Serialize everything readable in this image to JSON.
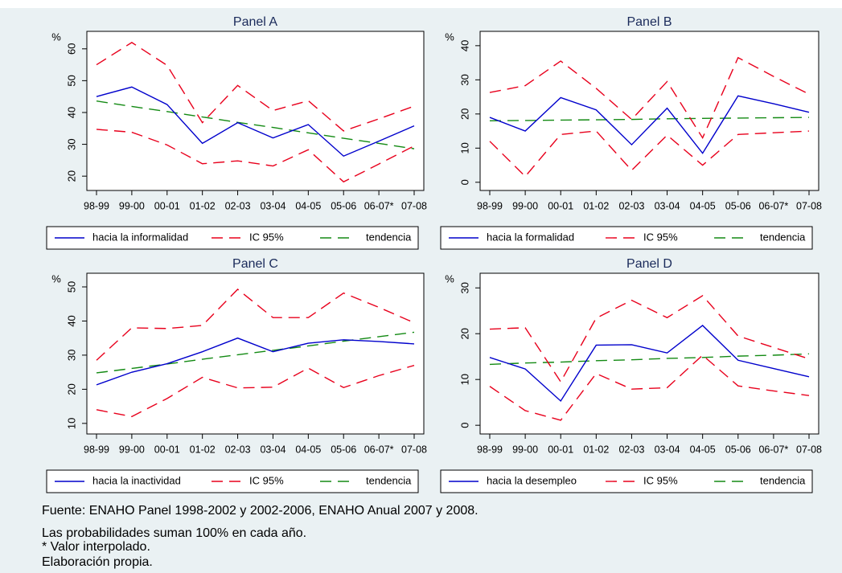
{
  "chart_data": [
    {
      "type": "line",
      "title": "Panel A",
      "ylabel": "%",
      "categories": [
        "98-99",
        "99-00",
        "00-01",
        "01-02",
        "02-03",
        "03-04",
        "04-05",
        "05-06",
        "06-07*",
        "07-08"
      ],
      "series": [
        {
          "name": "hacia la informalidad",
          "color": "#0000cc",
          "dash": "solid",
          "values": [
            45,
            48,
            42.5,
            30.3,
            36.8,
            32,
            36.2,
            26.3,
            31,
            35.8
          ]
        },
        {
          "name": "IC 95%",
          "color": "#e8001c",
          "dash": "dashed",
          "values": [
            55,
            62,
            54.8,
            36.8,
            48.5,
            40.6,
            43.7,
            34.2,
            38,
            42
          ],
          "lower": [
            34.7,
            33.8,
            29.8,
            23.9,
            24.8,
            23.2,
            28.3,
            18.2,
            23.8,
            29.5
          ]
        },
        {
          "name": "tendencia",
          "color": "#138a13",
          "dash": "dashed",
          "values": [
            43.6,
            41.9,
            40.3,
            38.6,
            36.9,
            35.3,
            33.6,
            31.9,
            30.3,
            28.6
          ]
        }
      ],
      "ylim": [
        15.5,
        65.5
      ],
      "yticks": [
        20,
        30,
        40,
        50,
        60
      ]
    },
    {
      "type": "line",
      "title": "Panel B",
      "ylabel": "%",
      "categories": [
        "98-99",
        "99-00",
        "00-01",
        "01-02",
        "02-03",
        "03-04",
        "04-05",
        "05-06",
        "06-07*",
        "07-08"
      ],
      "series": [
        {
          "name": "hacia la formalidad",
          "color": "#0000cc",
          "dash": "solid",
          "values": [
            19,
            15,
            24.8,
            21.2,
            11,
            21.7,
            8.5,
            25.3,
            23,
            20.5
          ]
        },
        {
          "name": "IC 95%",
          "color": "#e8001c",
          "dash": "dashed",
          "values": [
            26.3,
            28.3,
            35.5,
            27.5,
            18.4,
            29.5,
            13,
            36.5,
            31,
            25.8
          ],
          "lower": [
            12,
            1.7,
            14,
            15,
            3.5,
            13.8,
            5,
            14,
            14.5,
            15
          ]
        },
        {
          "name": "tendencia",
          "color": "#138a13",
          "dash": "dashed",
          "values": [
            18,
            18.1,
            18.2,
            18.3,
            18.4,
            18.6,
            18.7,
            18.8,
            18.9,
            19
          ]
        }
      ],
      "ylim": [
        -2.4,
        44.2
      ],
      "yticks": [
        0,
        10,
        20,
        30,
        40
      ]
    },
    {
      "type": "line",
      "title": "Panel C",
      "ylabel": "%",
      "categories": [
        "98-99",
        "99-00",
        "00-01",
        "01-02",
        "02-03",
        "03-04",
        "04-05",
        "05-06",
        "06-07*",
        "07-08"
      ],
      "series": [
        {
          "name": "hacia la inactividad",
          "color": "#0000cc",
          "dash": "solid",
          "values": [
            21.3,
            25,
            27.5,
            31,
            35,
            31,
            33.5,
            34.5,
            34,
            33.3
          ]
        },
        {
          "name": "IC 95%",
          "color": "#e8001c",
          "dash": "dashed",
          "values": [
            28.5,
            38,
            37.8,
            38.7,
            49.3,
            41,
            41,
            48.2,
            44,
            39.5
          ],
          "lower": [
            14,
            12,
            17.3,
            23.5,
            20.4,
            20.6,
            26.2,
            20.5,
            24,
            27
          ]
        },
        {
          "name": "tendencia",
          "color": "#138a13",
          "dash": "dashed",
          "values": [
            24.8,
            26.1,
            27.4,
            28.8,
            30.1,
            31.4,
            32.7,
            34.1,
            35.4,
            36.7
          ]
        }
      ],
      "ylim": [
        6.9,
        54
      ],
      "yticks": [
        10,
        20,
        30,
        40,
        50
      ]
    },
    {
      "type": "line",
      "title": "Panel D",
      "ylabel": "%",
      "categories": [
        "98-99",
        "99-00",
        "00-01",
        "01-02",
        "02-03",
        "03-04",
        "04-05",
        "05-06",
        "06-07*",
        "07-08"
      ],
      "series": [
        {
          "name": "hacia la desempleo",
          "color": "#0000cc",
          "dash": "solid",
          "values": [
            14.8,
            12.3,
            5.3,
            17.5,
            17.6,
            15.8,
            21.8,
            14.2,
            12.4,
            10.6
          ]
        },
        {
          "name": "IC 95%",
          "color": "#e8001c",
          "dash": "dashed",
          "values": [
            21,
            21.3,
            9.5,
            23.4,
            27.3,
            23.5,
            28.3,
            19.5,
            17,
            14.5
          ],
          "lower": [
            8.5,
            3.2,
            1.1,
            11.3,
            7.9,
            8.2,
            15.3,
            8.6,
            7.5,
            6.5
          ]
        },
        {
          "name": "tendencia",
          "color": "#138a13",
          "dash": "dashed",
          "values": [
            13.3,
            13.6,
            13.8,
            14.1,
            14.3,
            14.6,
            14.8,
            15.1,
            15.3,
            15.6
          ]
        }
      ],
      "ylim": [
        -1.9,
        33.2
      ],
      "yticks": [
        0,
        10,
        20,
        30
      ]
    }
  ],
  "footnotes": [
    "Fuente: ENAHO Panel 1998-2002 y 2002-2006, ENAHO Anual 2007 y 2008.",
    "Las probabilidades suman 100% en cada año.",
    "* Valor interpolado.",
    "Elaboración propia."
  ]
}
